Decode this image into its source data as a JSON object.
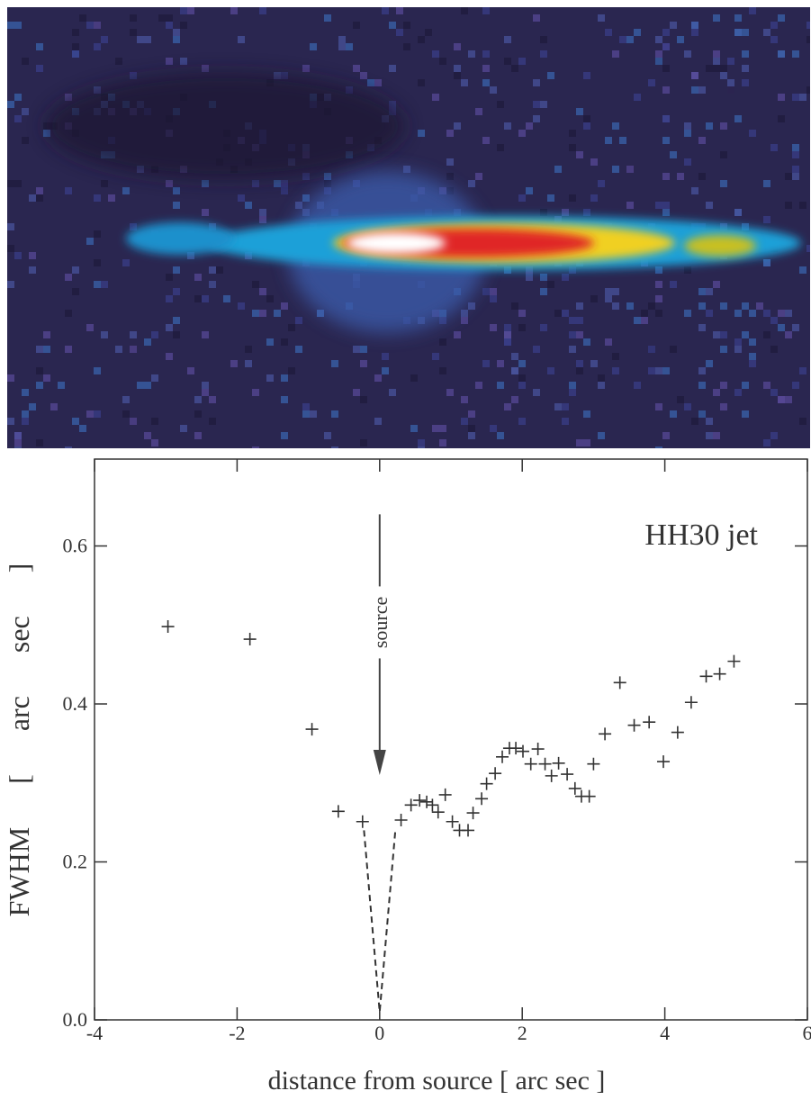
{
  "chart_data": {
    "type": "scatter",
    "annotation": "HH30 jet",
    "xlabel": "distance from source [ arc sec ]",
    "ylabel": "FWHM [ arc sec ]",
    "xlim": [
      -4,
      6
    ],
    "xticks": [
      -4,
      -2,
      0,
      2,
      4,
      6
    ],
    "ylim": [
      0,
      0.71
    ],
    "yticks": [
      {
        "value": 0,
        "label": "0.0"
      },
      0.2,
      0.4,
      0.6
    ],
    "marker": "+",
    "color": "#333333",
    "series": [
      {
        "x": [
          -2.97,
          -1.82,
          -0.95,
          -0.58,
          -0.24,
          0.3,
          0.44,
          0.56,
          0.66,
          0.74,
          0.82,
          0.92,
          1.02,
          1.12,
          1.24,
          1.31,
          1.43,
          1.5,
          1.62,
          1.72,
          1.82,
          1.91,
          2.01,
          2.12,
          2.22,
          2.32,
          2.41,
          2.51,
          2.63,
          2.74,
          2.83,
          2.94,
          3.0,
          3.16,
          3.37,
          3.57,
          3.78,
          3.98,
          4.18,
          4.37,
          4.58,
          4.77,
          4.97
        ],
        "values": [
          0.498,
          0.482,
          0.368,
          0.264,
          0.251,
          0.253,
          0.272,
          0.278,
          0.276,
          0.272,
          0.263,
          0.285,
          0.251,
          0.24,
          0.24,
          0.262,
          0.28,
          0.299,
          0.312,
          0.333,
          0.344,
          0.344,
          0.34,
          0.324,
          0.343,
          0.324,
          0.309,
          0.325,
          0.311,
          0.293,
          0.283,
          0.283,
          0.324,
          0.362,
          0.427,
          0.373,
          0.377,
          0.327,
          0.364,
          0.402,
          0.435,
          0.438,
          0.454
        ]
      }
    ],
    "dashed_line": {
      "x": [
        -0.22,
        0,
        0.22
      ],
      "values": [
        0.24,
        0.01,
        0.24
      ]
    },
    "arrow": {
      "label": "source",
      "x": 0,
      "from": 0.64,
      "to": 0.31
    }
  }
}
